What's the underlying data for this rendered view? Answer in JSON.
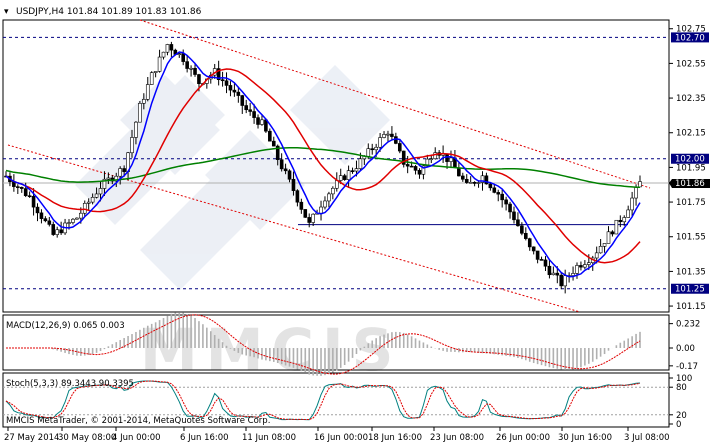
{
  "window": {
    "symbol_header": "USDJPY,H4  101.84 101.89 101.83 101.86",
    "watermark": "MMCIS",
    "copyright": "MMCIS MetaTrader, © 2001-2014, MetaQuotes Software Corp."
  },
  "price_panel": {
    "price_ticks": [
      "102.75",
      "102.55",
      "102.35",
      "102.15",
      "101.95",
      "101.75",
      "101.55",
      "101.35",
      "101.15"
    ],
    "level_labels": {
      "high": "102.70",
      "mid": "102.00",
      "current": "101.86",
      "low": "101.25"
    },
    "colors": {
      "bull_candle": "#ffffff",
      "bear_candle": "#000000",
      "ma_fast": "#0000ff",
      "ma_mid": "#e00000",
      "ma_slow": "#008000",
      "channel": "#e00000",
      "level_line": "#000080",
      "current_price_box": "#000000"
    }
  },
  "macd_panel": {
    "label": "MACD(12,26,9) 0.065 0.003",
    "ticks": [
      "0.232",
      "0.00",
      "-0.17"
    ],
    "colors": {
      "histogram": "#b0b0b0",
      "signal": "#e00000"
    }
  },
  "stoch_panel": {
    "label": "Stoch(5,3,3) 89.3443 90.3395",
    "ticks": [
      "100",
      "80",
      "20",
      "0"
    ],
    "colors": {
      "main": "#008080",
      "signal": "#e00000"
    }
  },
  "time_axis": {
    "labels": [
      "27 May 2014",
      "30 May 08:00",
      "4 Jun 00:00",
      "6 Jun 16:00",
      "11 Jun 08:00",
      "16 Jun 00:00",
      "18 Jun 16:00",
      "23 Jun 08:00",
      "26 Jun 00:00",
      "30 Jun 16:00",
      "3 Jul 08:00"
    ]
  }
}
